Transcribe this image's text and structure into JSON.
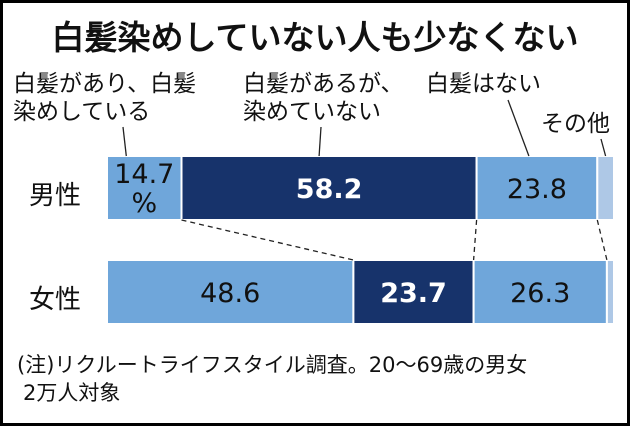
{
  "title": "白髪染めしていない人も少なくない",
  "legend": {
    "cat1": [
      "白髪があり、白髪",
      "染めしている"
    ],
    "cat2": [
      "白髪があるが、",
      "染めていない"
    ],
    "cat3": "白髪はない",
    "cat4": "その他"
  },
  "note": [
    "(注)リクルートライフスタイル調査。20～69歳の男女",
    "2万人対象"
  ],
  "chart_data": {
    "type": "bar",
    "orientation": "horizontal-stacked-100",
    "categories": [
      "男性",
      "女性"
    ],
    "series": [
      {
        "name": "白髪があり、白髪染めしている",
        "values": [
          14.7,
          48.6
        ],
        "labels": [
          "14.7%",
          "48.6"
        ],
        "color": "#6fa6da",
        "text_color": "#111111"
      },
      {
        "name": "白髪があるが、染めていない",
        "values": [
          58.2,
          23.7
        ],
        "labels": [
          "58.2",
          "23.7"
        ],
        "color": "#17336b",
        "text_color": "#ffffff"
      },
      {
        "name": "白髪はない",
        "values": [
          23.8,
          26.3
        ],
        "labels": [
          "23.8",
          "26.3"
        ],
        "color": "#6fa6da",
        "text_color": "#111111"
      },
      {
        "name": "その他",
        "values": [
          3.3,
          1.4
        ],
        "labels": [
          "",
          ""
        ],
        "color": "#aec8e6",
        "text_color": "#111111"
      }
    ],
    "xlim": [
      0,
      100
    ]
  }
}
